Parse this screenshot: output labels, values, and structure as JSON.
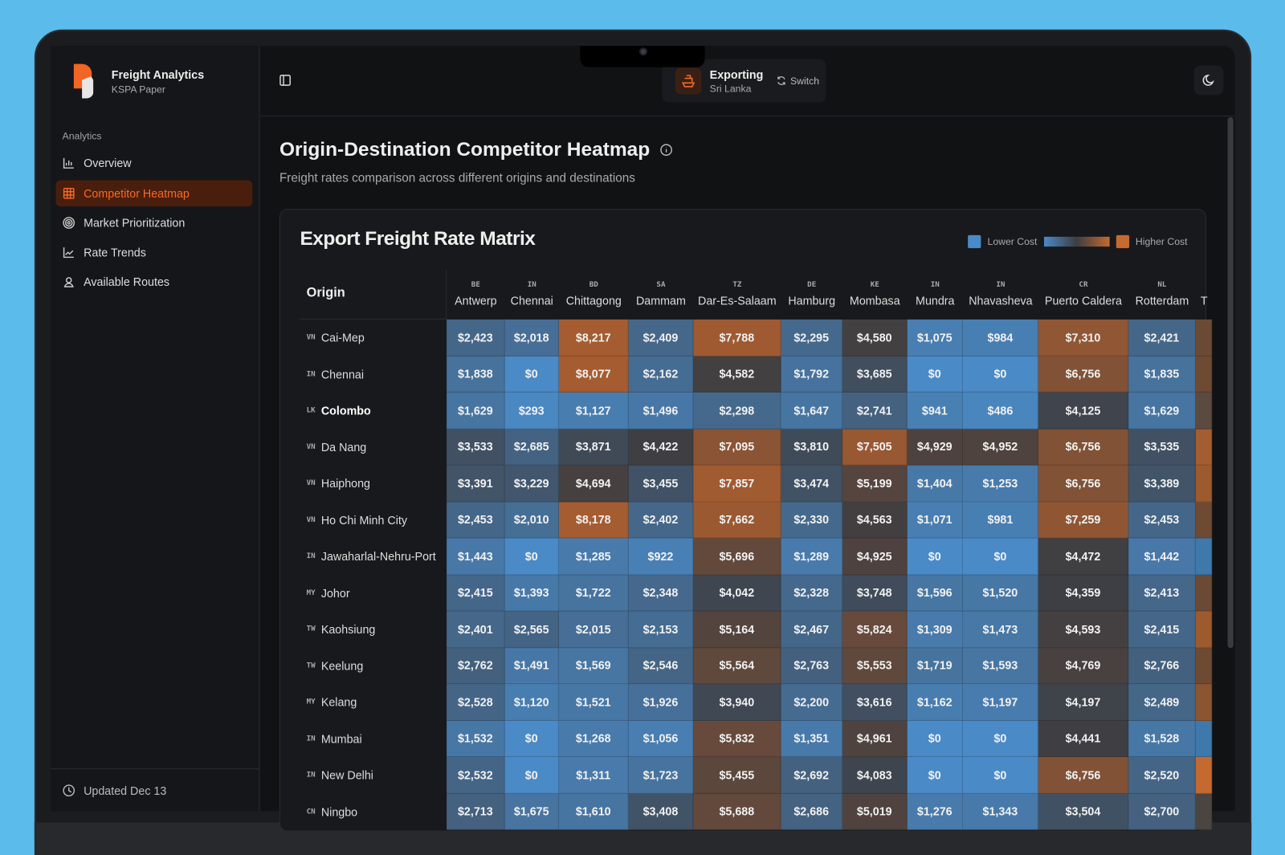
{
  "app": {
    "title": "Freight Analytics",
    "subtitle": "KSPA Paper"
  },
  "sidebar": {
    "section": "Analytics",
    "items": [
      {
        "label": "Overview",
        "icon": "bar-chart-icon"
      },
      {
        "label": "Competitor Heatmap",
        "icon": "grid-icon",
        "active": true
      },
      {
        "label": "Market Prioritization",
        "icon": "target-icon"
      },
      {
        "label": "Rate Trends",
        "icon": "line-chart-icon"
      },
      {
        "label": "Available Routes",
        "icon": "map-pin-user-icon"
      }
    ],
    "footer": "Updated Dec 13"
  },
  "topbar": {
    "mode": "Exporting",
    "country": "Sri Lanka",
    "switch_label": "Switch"
  },
  "page": {
    "title": "Origin-Destination Competitor Heatmap",
    "subtitle": "Freight rates comparison across different origins and destinations"
  },
  "colors": {
    "low": "#4a8ac6",
    "mid": "#3d3d40",
    "high": "#c46a30",
    "accent": "#f26b2c"
  },
  "chart_data": {
    "type": "heatmap",
    "title": "Export Freight Rate Matrix",
    "legend": {
      "low": "Lower Cost",
      "high": "Higher Cost",
      "placement": "top-right"
    },
    "row_header": "Origin",
    "columns": [
      {
        "code": "BE",
        "name": "Antwerp"
      },
      {
        "code": "IN",
        "name": "Chennai"
      },
      {
        "code": "BD",
        "name": "Chittagong"
      },
      {
        "code": "SA",
        "name": "Dammam"
      },
      {
        "code": "TZ",
        "name": "Dar-Es-Salaam"
      },
      {
        "code": "DE",
        "name": "Hamburg"
      },
      {
        "code": "KE",
        "name": "Mombasa"
      },
      {
        "code": "IN",
        "name": "Mundra"
      },
      {
        "code": "IN",
        "name": "Nhavasheva"
      },
      {
        "code": "CR",
        "name": "Puerto Caldera"
      },
      {
        "code": "NL",
        "name": "Rotterdam"
      },
      {
        "code": "",
        "name": "T"
      }
    ],
    "rows": [
      {
        "code": "VN",
        "name": "Cai-Mep",
        "values": [
          "$2,423",
          "$2,018",
          "$8,217",
          "$2,409",
          "$7,788",
          "$2,295",
          "$4,580",
          "$1,075",
          "$984",
          "$7,310",
          "$2,421"
        ]
      },
      {
        "code": "IN",
        "name": "Chennai",
        "values": [
          "$1,838",
          "$0",
          "$8,077",
          "$2,162",
          "$4,582",
          "$1,792",
          "$3,685",
          "$0",
          "$0",
          "$6,756",
          "$1,835"
        ]
      },
      {
        "code": "LK",
        "name": "Colombo",
        "selected": true,
        "values": [
          "$1,629",
          "$293",
          "$1,127",
          "$1,496",
          "$2,298",
          "$1,647",
          "$2,741",
          "$941",
          "$486",
          "$4,125",
          "$1,629"
        ]
      },
      {
        "code": "VN",
        "name": "Da Nang",
        "values": [
          "$3,533",
          "$2,685",
          "$3,871",
          "$4,422",
          "$7,095",
          "$3,810",
          "$7,505",
          "$4,929",
          "$4,952",
          "$6,756",
          "$3,535"
        ]
      },
      {
        "code": "VN",
        "name": "Haiphong",
        "values": [
          "$3,391",
          "$3,229",
          "$4,694",
          "$3,455",
          "$7,857",
          "$3,474",
          "$5,199",
          "$1,404",
          "$1,253",
          "$6,756",
          "$3,389"
        ]
      },
      {
        "code": "VN",
        "name": "Ho Chi Minh City",
        "values": [
          "$2,453",
          "$2,010",
          "$8,178",
          "$2,402",
          "$7,662",
          "$2,330",
          "$4,563",
          "$1,071",
          "$981",
          "$7,259",
          "$2,453"
        ]
      },
      {
        "code": "IN",
        "name": "Jawaharlal-Nehru-Port",
        "values": [
          "$1,443",
          "$0",
          "$1,285",
          "$922",
          "$5,696",
          "$1,289",
          "$4,925",
          "$0",
          "$0",
          "$4,472",
          "$1,442"
        ]
      },
      {
        "code": "MY",
        "name": "Johor",
        "values": [
          "$2,415",
          "$1,393",
          "$1,722",
          "$2,348",
          "$4,042",
          "$2,328",
          "$3,748",
          "$1,596",
          "$1,520",
          "$4,359",
          "$2,413"
        ]
      },
      {
        "code": "TW",
        "name": "Kaohsiung",
        "values": [
          "$2,401",
          "$2,565",
          "$2,015",
          "$2,153",
          "$5,164",
          "$2,467",
          "$5,824",
          "$1,309",
          "$1,473",
          "$4,593",
          "$2,415"
        ]
      },
      {
        "code": "TW",
        "name": "Keelung",
        "values": [
          "$2,762",
          "$1,491",
          "$1,569",
          "$2,546",
          "$5,564",
          "$2,763",
          "$5,553",
          "$1,719",
          "$1,593",
          "$4,769",
          "$2,766"
        ]
      },
      {
        "code": "MY",
        "name": "Kelang",
        "values": [
          "$2,528",
          "$1,120",
          "$1,521",
          "$1,926",
          "$3,940",
          "$2,200",
          "$3,616",
          "$1,162",
          "$1,197",
          "$4,197",
          "$2,489"
        ]
      },
      {
        "code": "IN",
        "name": "Mumbai",
        "values": [
          "$1,532",
          "$0",
          "$1,268",
          "$1,056",
          "$5,832",
          "$1,351",
          "$4,961",
          "$0",
          "$0",
          "$4,441",
          "$1,528"
        ]
      },
      {
        "code": "IN",
        "name": "New Delhi",
        "values": [
          "$2,532",
          "$0",
          "$1,311",
          "$1,723",
          "$5,455",
          "$2,692",
          "$4,083",
          "$0",
          "$0",
          "$6,756",
          "$2,520"
        ]
      },
      {
        "code": "CN",
        "name": "Ningbo",
        "values": [
          "$2,713",
          "$1,675",
          "$1,610",
          "$3,408",
          "$5,688",
          "$2,686",
          "$5,019",
          "$1,276",
          "$1,343",
          "$3,504",
          "$2,700"
        ]
      }
    ],
    "clipped_column_colors": [
      "#6b4a35",
      "#6e4a33",
      "#5a4a40",
      "#a35d30",
      "#9c5a2e",
      "#6e4a33",
      "#3f78aa",
      "#6b4a35",
      "#9c5a2e",
      "#6e4a33",
      "#8a5530",
      "#3f78aa",
      "#c46a30",
      "#4a4540"
    ]
  }
}
